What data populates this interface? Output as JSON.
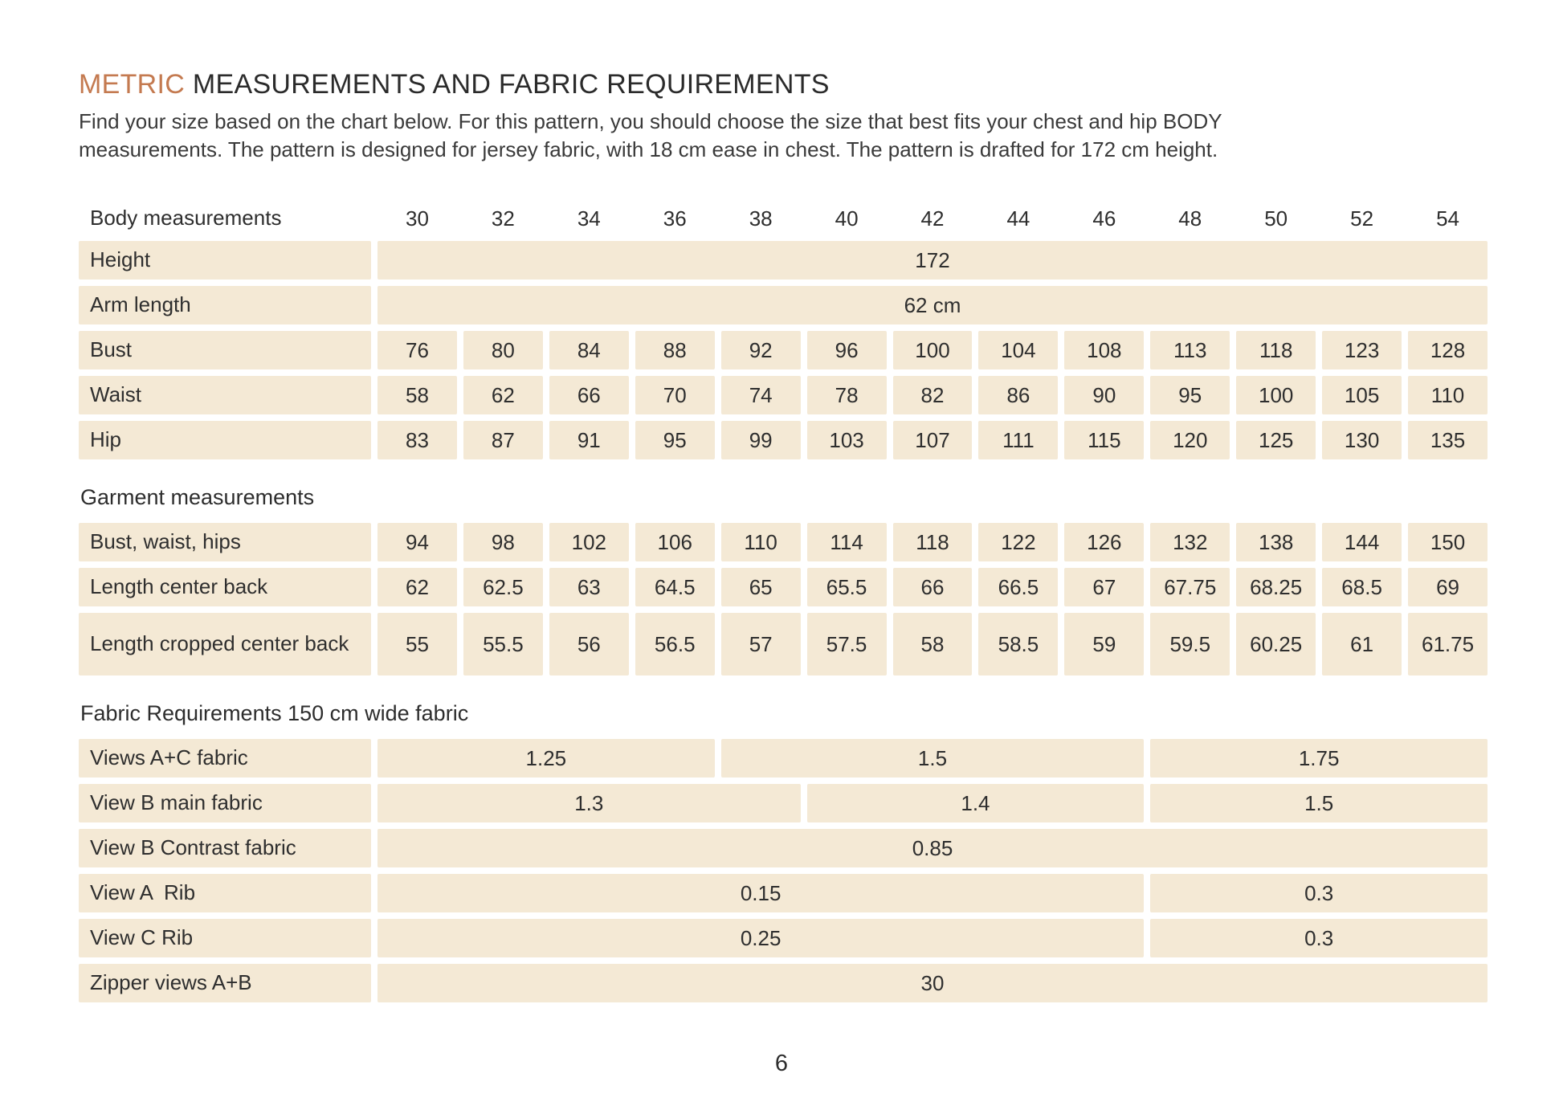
{
  "colors": {
    "accent": "#c47a50",
    "cell_background": "#f4e9d5",
    "text": "#2d2d2d",
    "page_background": "#ffffff"
  },
  "title": {
    "accent": "METRIC",
    "rest": " MEASUREMENTS AND FABRIC REQUIREMENTS"
  },
  "intro_lines": [
    "Find your size based on the chart below. For this pattern, you should choose the size that best fits your chest and hip BODY",
    "measurements. The pattern is designed for jersey fabric, with 18 cm ease in chest. The pattern is drafted for 172 cm height."
  ],
  "table": {
    "rows": [
      {
        "type": "header",
        "label": "Body measurements",
        "cells": [
          {
            "t": "30",
            "s": 1
          },
          {
            "t": "32",
            "s": 1
          },
          {
            "t": "34",
            "s": 1
          },
          {
            "t": "36",
            "s": 1
          },
          {
            "t": "38",
            "s": 1
          },
          {
            "t": "40",
            "s": 1
          },
          {
            "t": "42",
            "s": 1
          },
          {
            "t": "44",
            "s": 1
          },
          {
            "t": "46",
            "s": 1
          },
          {
            "t": "48",
            "s": 1
          },
          {
            "t": "50",
            "s": 1
          },
          {
            "t": "52",
            "s": 1
          },
          {
            "t": "54",
            "s": 1
          }
        ]
      },
      {
        "type": "data",
        "label": "Height",
        "cells": [
          {
            "t": "172",
            "s": 13
          }
        ]
      },
      {
        "type": "data",
        "label": "Arm length",
        "cells": [
          {
            "t": "62 cm",
            "s": 13
          }
        ]
      },
      {
        "type": "data",
        "label": "Bust",
        "cells": [
          {
            "t": "76",
            "s": 1
          },
          {
            "t": "80",
            "s": 1
          },
          {
            "t": "84",
            "s": 1
          },
          {
            "t": "88",
            "s": 1
          },
          {
            "t": "92",
            "s": 1
          },
          {
            "t": "96",
            "s": 1
          },
          {
            "t": "100",
            "s": 1
          },
          {
            "t": "104",
            "s": 1
          },
          {
            "t": "108",
            "s": 1
          },
          {
            "t": "113",
            "s": 1
          },
          {
            "t": "118",
            "s": 1
          },
          {
            "t": "123",
            "s": 1
          },
          {
            "t": "128",
            "s": 1
          }
        ]
      },
      {
        "type": "data",
        "label": "Waist",
        "cells": [
          {
            "t": "58",
            "s": 1
          },
          {
            "t": "62",
            "s": 1
          },
          {
            "t": "66",
            "s": 1
          },
          {
            "t": "70",
            "s": 1
          },
          {
            "t": "74",
            "s": 1
          },
          {
            "t": "78",
            "s": 1
          },
          {
            "t": "82",
            "s": 1
          },
          {
            "t": "86",
            "s": 1
          },
          {
            "t": "90",
            "s": 1
          },
          {
            "t": "95",
            "s": 1
          },
          {
            "t": "100",
            "s": 1
          },
          {
            "t": "105",
            "s": 1
          },
          {
            "t": "110",
            "s": 1
          }
        ]
      },
      {
        "type": "data",
        "label": "Hip",
        "cells": [
          {
            "t": "83",
            "s": 1
          },
          {
            "t": "87",
            "s": 1
          },
          {
            "t": "91",
            "s": 1
          },
          {
            "t": "95",
            "s": 1
          },
          {
            "t": "99",
            "s": 1
          },
          {
            "t": "103",
            "s": 1
          },
          {
            "t": "107",
            "s": 1
          },
          {
            "t": "111",
            "s": 1
          },
          {
            "t": "115",
            "s": 1
          },
          {
            "t": "120",
            "s": 1
          },
          {
            "t": "125",
            "s": 1
          },
          {
            "t": "130",
            "s": 1
          },
          {
            "t": "135",
            "s": 1
          }
        ]
      },
      {
        "type": "section",
        "label": "Garment measurements"
      },
      {
        "type": "data",
        "label": "Bust, waist, hips",
        "cells": [
          {
            "t": "94",
            "s": 1
          },
          {
            "t": "98",
            "s": 1
          },
          {
            "t": "102",
            "s": 1
          },
          {
            "t": "106",
            "s": 1
          },
          {
            "t": "110",
            "s": 1
          },
          {
            "t": "114",
            "s": 1
          },
          {
            "t": "118",
            "s": 1
          },
          {
            "t": "122",
            "s": 1
          },
          {
            "t": "126",
            "s": 1
          },
          {
            "t": "132",
            "s": 1
          },
          {
            "t": "138",
            "s": 1
          },
          {
            "t": "144",
            "s": 1
          },
          {
            "t": "150",
            "s": 1
          }
        ]
      },
      {
        "type": "data",
        "label": "Length center back",
        "cells": [
          {
            "t": "62",
            "s": 1
          },
          {
            "t": "62.5",
            "s": 1
          },
          {
            "t": "63",
            "s": 1
          },
          {
            "t": "64.5",
            "s": 1
          },
          {
            "t": "65",
            "s": 1
          },
          {
            "t": "65.5",
            "s": 1
          },
          {
            "t": "66",
            "s": 1
          },
          {
            "t": "66.5",
            "s": 1
          },
          {
            "t": "67",
            "s": 1
          },
          {
            "t": "67.75",
            "s": 1
          },
          {
            "t": "68.25",
            "s": 1
          },
          {
            "t": "68.5",
            "s": 1
          },
          {
            "t": "69",
            "s": 1
          }
        ]
      },
      {
        "type": "data",
        "tall": true,
        "label": "Length cropped center back",
        "cells": [
          {
            "t": "55",
            "s": 1
          },
          {
            "t": "55.5",
            "s": 1
          },
          {
            "t": "56",
            "s": 1
          },
          {
            "t": "56.5",
            "s": 1
          },
          {
            "t": "57",
            "s": 1
          },
          {
            "t": "57.5",
            "s": 1
          },
          {
            "t": "58",
            "s": 1
          },
          {
            "t": "58.5",
            "s": 1
          },
          {
            "t": "59",
            "s": 1
          },
          {
            "t": "59.5",
            "s": 1
          },
          {
            "t": "60.25",
            "s": 1
          },
          {
            "t": "61",
            "s": 1
          },
          {
            "t": "61.75",
            "s": 1
          }
        ]
      },
      {
        "type": "section",
        "label": "Fabric Requirements 150 cm wide fabric"
      },
      {
        "type": "data",
        "label": "Views A+C fabric",
        "cells": [
          {
            "t": "1.25",
            "s": 4
          },
          {
            "t": "1.5",
            "s": 5
          },
          {
            "t": "1.75",
            "s": 4
          }
        ]
      },
      {
        "type": "data",
        "label": "View B main fabric",
        "cells": [
          {
            "t": "1.3",
            "s": 5
          },
          {
            "t": "1.4",
            "s": 4
          },
          {
            "t": "1.5",
            "s": 4
          }
        ]
      },
      {
        "type": "data",
        "label": "View B Contrast fabric",
        "cells": [
          {
            "t": "0.85",
            "s": 13
          }
        ]
      },
      {
        "type": "data",
        "label": "View A  Rib",
        "cells": [
          {
            "t": "0.15",
            "s": 9
          },
          {
            "t": "0.3",
            "s": 4
          }
        ]
      },
      {
        "type": "data",
        "label": "View C Rib",
        "cells": [
          {
            "t": "0.25",
            "s": 9
          },
          {
            "t": "0.3",
            "s": 4
          }
        ]
      },
      {
        "type": "data",
        "label": "Zipper views A+B",
        "cells": [
          {
            "t": "30",
            "s": 13
          }
        ]
      }
    ]
  },
  "page_number": "6"
}
